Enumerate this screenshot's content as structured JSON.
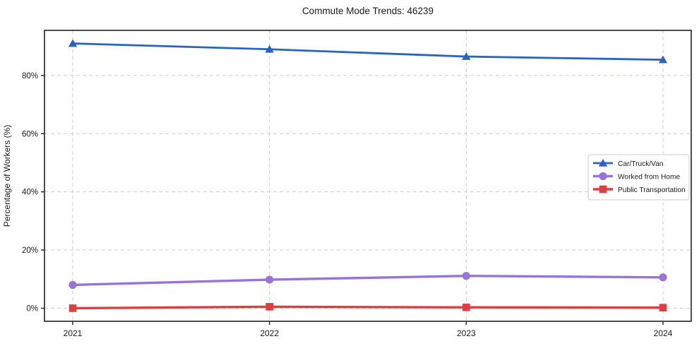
{
  "title": "Commute Mode Trends: 46239",
  "chart_data": {
    "type": "line",
    "title": "Commute Mode Trends: 46239",
    "xlabel": "",
    "ylabel": "Percentage of Workers (%)",
    "categories": [
      "2021",
      "2022",
      "2023",
      "2024"
    ],
    "series": [
      {
        "name": "Car/Truck/Van",
        "values": [
          91.0,
          89.0,
          86.5,
          85.4
        ],
        "color": "#2965c0",
        "marker": "triangle"
      },
      {
        "name": "Worked from Home",
        "values": [
          8.0,
          9.8,
          11.1,
          10.6
        ],
        "color": "#9874d9",
        "marker": "circle"
      },
      {
        "name": "Public Transportation",
        "values": [
          0.0,
          0.5,
          0.3,
          0.2
        ],
        "color": "#de3e3e",
        "marker": "square"
      }
    ],
    "ylim": [
      -4.5,
      95.5
    ],
    "yticks": [
      {
        "v": 0,
        "label": "0%"
      },
      {
        "v": 20,
        "label": "20%"
      },
      {
        "v": 40,
        "label": "40%"
      },
      {
        "v": 60,
        "label": "60%"
      },
      {
        "v": 80,
        "label": "80%"
      }
    ],
    "grid": "dashed both axes",
    "legend_position": "center right"
  },
  "colors": {
    "grid": "#cdcdcd",
    "axis": "#212121",
    "background": "#ffffff",
    "legend_border": "#cccccc",
    "legend_fill": "#ffffff"
  }
}
